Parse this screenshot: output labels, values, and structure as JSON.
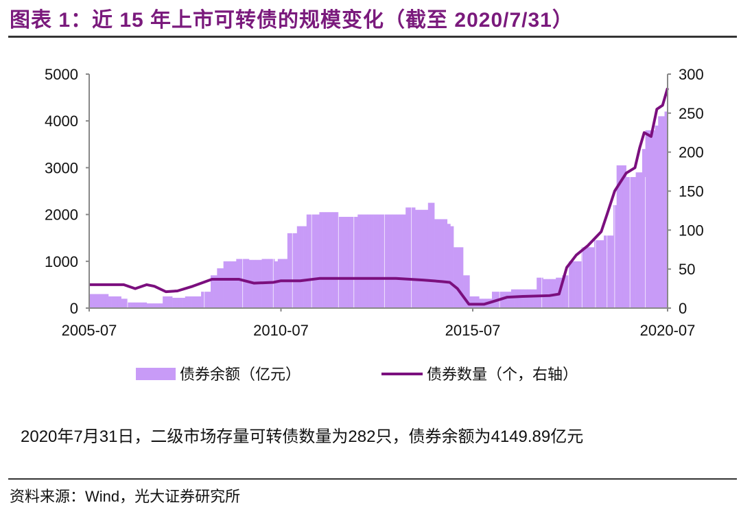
{
  "title": "图表 1：近 15 年上市可转债的规模变化（截至 2020/7/31）",
  "note": "2020年7月31日，二级市场存量可转债数量为282只，债券余额为4149.89亿元",
  "source": "资料来源：Wind，光大证券研究所",
  "colors": {
    "bar": "#c89bf7",
    "line": "#7b0f7e",
    "title": "#7a1a7c"
  },
  "chart_data": {
    "type": "bar+line",
    "title": "近 15 年上市可转债的规模变化（截至 2020/7/31）",
    "xlim": [
      2005.5,
      2020.58
    ],
    "x_ticks": [
      {
        "v": 2005.5,
        "label": "2005-07"
      },
      {
        "v": 2010.5,
        "label": "2010-07"
      },
      {
        "v": 2015.5,
        "label": "2015-07"
      },
      {
        "v": 2020.5,
        "label": "2020-07"
      }
    ],
    "y_left": {
      "lim": [
        0,
        5000
      ],
      "ticks": [
        "0",
        "1000",
        "2000",
        "3000",
        "4000",
        "5000"
      ]
    },
    "y_right": {
      "lim": [
        0,
        300
      ],
      "ticks": [
        "0",
        "50",
        "100",
        "150",
        "200",
        "250",
        "300"
      ]
    },
    "legend": {
      "placement": "bottom",
      "entries": [
        "债券余额（亿元）",
        "债券数量（个，右轴）"
      ]
    },
    "series": [
      {
        "name": "债券余额（亿元）",
        "type": "bar",
        "axis": "left",
        "x": [
          2005.5,
          2006.0,
          2006.3,
          2006.5,
          2007.0,
          2007.4,
          2007.6,
          2008.0,
          2008.4,
          2008.6,
          2008.8,
          2009.0,
          2009.3,
          2009.6,
          2010.0,
          2010.3,
          2010.4,
          2010.6,
          2010.9,
          2011.1,
          2011.5,
          2012.0,
          2012.5,
          2013.0,
          2013.5,
          2013.7,
          2014.0,
          2014.2,
          2014.3,
          2014.5,
          2014.8,
          2014.9,
          2015.0,
          2015.2,
          2015.4,
          2015.6,
          2015.9,
          2016.0,
          2016.5,
          2017.0,
          2017.1,
          2017.3,
          2017.6,
          2017.8,
          2018.0,
          2018.3,
          2018.6,
          2018.9,
          2019.1,
          2019.2,
          2019.4,
          2019.5,
          2019.7,
          2019.9,
          2020.0,
          2020.2,
          2020.3,
          2020.45,
          2020.58
        ],
        "values": [
          300,
          250,
          200,
          120,
          100,
          250,
          220,
          250,
          350,
          700,
          850,
          1000,
          1050,
          1030,
          1050,
          1000,
          1050,
          1600,
          1750,
          2000,
          2050,
          1950,
          2000,
          2000,
          2000,
          2150,
          2100,
          2100,
          2250,
          1900,
          1800,
          1750,
          1300,
          700,
          250,
          200,
          200,
          350,
          400,
          400,
          650,
          620,
          650,
          700,
          1000,
          1300,
          1450,
          1550,
          2200,
          3050,
          3050,
          2800,
          2900,
          3400,
          3800,
          3900,
          4100,
          4200,
          4150
        ]
      },
      {
        "name": "债券数量（个，右轴）",
        "type": "line",
        "axis": "right",
        "x": [
          2005.5,
          2006.4,
          2006.7,
          2007.0,
          2007.2,
          2007.5,
          2007.8,
          2008.2,
          2008.7,
          2009.4,
          2009.8,
          2010.3,
          2010.5,
          2011.0,
          2011.5,
          2012.5,
          2013.5,
          2014.2,
          2014.7,
          2014.9,
          2015.1,
          2015.4,
          2015.8,
          2016.0,
          2016.4,
          2016.8,
          2017.5,
          2017.75,
          2017.95,
          2018.2,
          2018.5,
          2018.85,
          2019.0,
          2019.2,
          2019.33,
          2019.5,
          2019.73,
          2019.85,
          2019.97,
          2020.15,
          2020.3,
          2020.45,
          2020.58
        ],
        "values": [
          30,
          30,
          25,
          30,
          28,
          21,
          22,
          28,
          37,
          37,
          32,
          33,
          35,
          35,
          38,
          38,
          38,
          36,
          34,
          33,
          25,
          5,
          5,
          8,
          14,
          15,
          16,
          18,
          52,
          68,
          80,
          98,
          120,
          150,
          160,
          173,
          180,
          205,
          225,
          220,
          255,
          260,
          282
        ]
      }
    ]
  }
}
